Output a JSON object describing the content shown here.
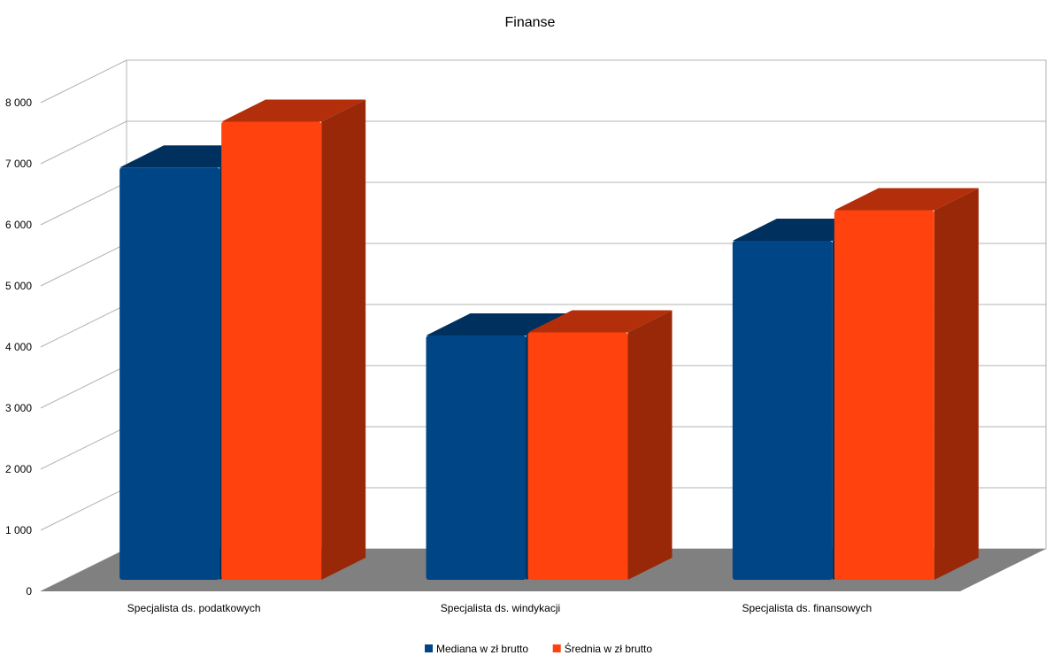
{
  "chart_data": {
    "type": "bar",
    "title": "Finanse",
    "categories": [
      "Specjalista ds. podatkowych",
      "Specjalista ds. windykacji",
      "Specjalista ds. finansowych"
    ],
    "series": [
      {
        "name": "Mediana w zł brutto",
        "values": [
          6750,
          4000,
          5550
        ],
        "color": "#004586"
      },
      {
        "name": "Średnia w zł brutto",
        "values": [
          7500,
          4050,
          6050
        ],
        "color": "#ff420e"
      }
    ],
    "ylim": [
      0,
      8000
    ],
    "yticks": [
      0,
      1000,
      2000,
      3000,
      4000,
      5000,
      6000,
      7000,
      8000
    ],
    "ytick_labels": [
      "0",
      "1 000",
      "2 000",
      "3 000",
      "4 000",
      "5 000",
      "6 000",
      "7 000",
      "8 000"
    ],
    "grid": true,
    "legend_position": "bottom",
    "style": "3d"
  }
}
